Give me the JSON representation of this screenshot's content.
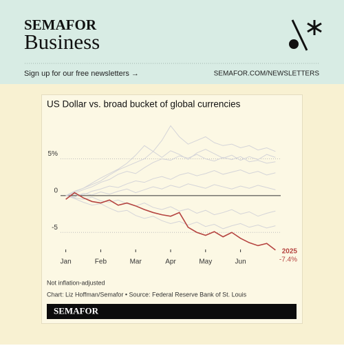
{
  "header": {
    "brand": "SEMAFOR",
    "section": "Business",
    "signup": "Sign up for our free newsletters →",
    "url": "SEMAFOR.COM/NEWSLETTERS"
  },
  "chart_data": {
    "type": "line",
    "title": "US Dollar vs. broad bucket of global currencies",
    "note": "Not inflation-adjusted",
    "source": "Chart: Liz Hoffman/Semafor • Source: Federal Reserve Bank of St. Louis",
    "x": [
      0,
      0.25,
      0.5,
      0.75,
      1,
      1.25,
      1.5,
      1.75,
      2,
      2.25,
      2.5,
      2.75,
      3,
      3.25,
      3.5,
      3.75,
      4,
      4.25,
      4.5,
      4.75,
      5,
      5.25,
      5.5,
      5.75,
      6
    ],
    "xlim": [
      -0.15,
      6.15
    ],
    "xticks": [
      {
        "value": 0,
        "label": "Jan"
      },
      {
        "value": 1,
        "label": "Feb"
      },
      {
        "value": 2,
        "label": "Mar"
      },
      {
        "value": 3,
        "label": "Apr"
      },
      {
        "value": 4,
        "label": "May"
      },
      {
        "value": 5,
        "label": "Jun"
      }
    ],
    "ylim": [
      -7.6,
      10.2
    ],
    "yticks": [
      {
        "value": 5,
        "label": "5%"
      },
      0,
      -5
    ],
    "grid": true,
    "series": [
      {
        "color": "#d4d4d8",
        "values": [
          0,
          0.5,
          1,
          1.5,
          2,
          2.8,
          3.5,
          4,
          4.5,
          5,
          6,
          7.5,
          9.5,
          8,
          7,
          7.5,
          8,
          7.2,
          6.8,
          7,
          6.5,
          6.8,
          6.2,
          6.5,
          6
        ]
      },
      {
        "color": "#d4d4d8",
        "values": [
          0,
          0.3,
          0.8,
          1.2,
          1.8,
          2.2,
          2.9,
          3.3,
          3.0,
          3.8,
          4.5,
          5.0,
          4.8,
          5.4,
          5.1,
          5.6,
          5.0,
          4.7,
          5.2,
          4.9,
          5.3,
          4.6,
          4.8,
          4.4,
          4.6
        ]
      },
      {
        "color": "#d4d4d8",
        "values": [
          0,
          0.6,
          1.0,
          1.7,
          2.4,
          3.0,
          3.6,
          4.4,
          5.5,
          6.8,
          6.0,
          5.2,
          6.1,
          5.6,
          4.9,
          5.8,
          6.3,
          5.7,
          5.1,
          5.5,
          4.8,
          5.3,
          4.9,
          5.6,
          5.2
        ]
      },
      {
        "color": "#d4d4d8",
        "values": [
          0,
          0.2,
          0.1,
          0.6,
          0.9,
          1.3,
          1.1,
          1.6,
          2.0,
          1.8,
          2.3,
          2.6,
          2.2,
          2.8,
          3.1,
          2.7,
          3.0,
          3.4,
          2.9,
          3.2,
          3.5,
          3.0,
          3.3,
          2.8,
          3.1
        ]
      },
      {
        "color": "#d4d4d8",
        "values": [
          0,
          -0.2,
          0.3,
          0.1,
          0.5,
          0.2,
          0.6,
          0.9,
          0.4,
          0.8,
          1.2,
          0.9,
          1.4,
          1.1,
          1.6,
          1.3,
          1.0,
          1.5,
          1.2,
          0.9,
          1.3,
          1.0,
          1.4,
          1.1,
          0.8
        ]
      },
      {
        "color": "#d4d4d8",
        "values": [
          0,
          -0.3,
          -0.5,
          -0.2,
          -0.7,
          -0.9,
          -0.6,
          -1.1,
          -1.4,
          -1.0,
          -1.6,
          -1.9,
          -1.5,
          -2.1,
          -1.8,
          -2.4,
          -2.0,
          -2.6,
          -2.3,
          -1.9,
          -2.5,
          -2.2,
          -2.8,
          -2.4,
          -2.1
        ]
      },
      {
        "color": "#d4d4d8",
        "values": [
          0,
          -0.4,
          -0.9,
          -1.3,
          -1.1,
          -1.7,
          -2.2,
          -2.0,
          -2.7,
          -3.1,
          -2.8,
          -3.4,
          -3.8,
          -3.5,
          -4.0,
          -3.6,
          -4.2,
          -3.9,
          -4.5,
          -4.1,
          -3.8,
          -4.3,
          -4.0,
          -4.4,
          -4.1
        ]
      },
      {
        "name": "2025",
        "color": "#b5433f",
        "values": [
          -0.5,
          0.4,
          -0.3,
          -0.8,
          -1.0,
          -0.6,
          -1.3,
          -1.0,
          -1.4,
          -1.9,
          -2.3,
          -2.6,
          -2.8,
          -2.3,
          -4.3,
          -5.0,
          -5.4,
          -4.9,
          -5.6,
          -5.0,
          -5.8,
          -6.4,
          -6.8,
          -6.5,
          -7.4
        ],
        "value_labels": [
          null,
          null,
          null,
          null,
          null,
          null,
          null,
          null,
          null,
          null,
          null,
          null,
          null,
          null,
          null,
          null,
          null,
          null,
          null,
          null,
          null,
          null,
          null,
          null,
          "-7.4%"
        ]
      }
    ]
  },
  "footer": {
    "brand": "SEMAFOR"
  }
}
